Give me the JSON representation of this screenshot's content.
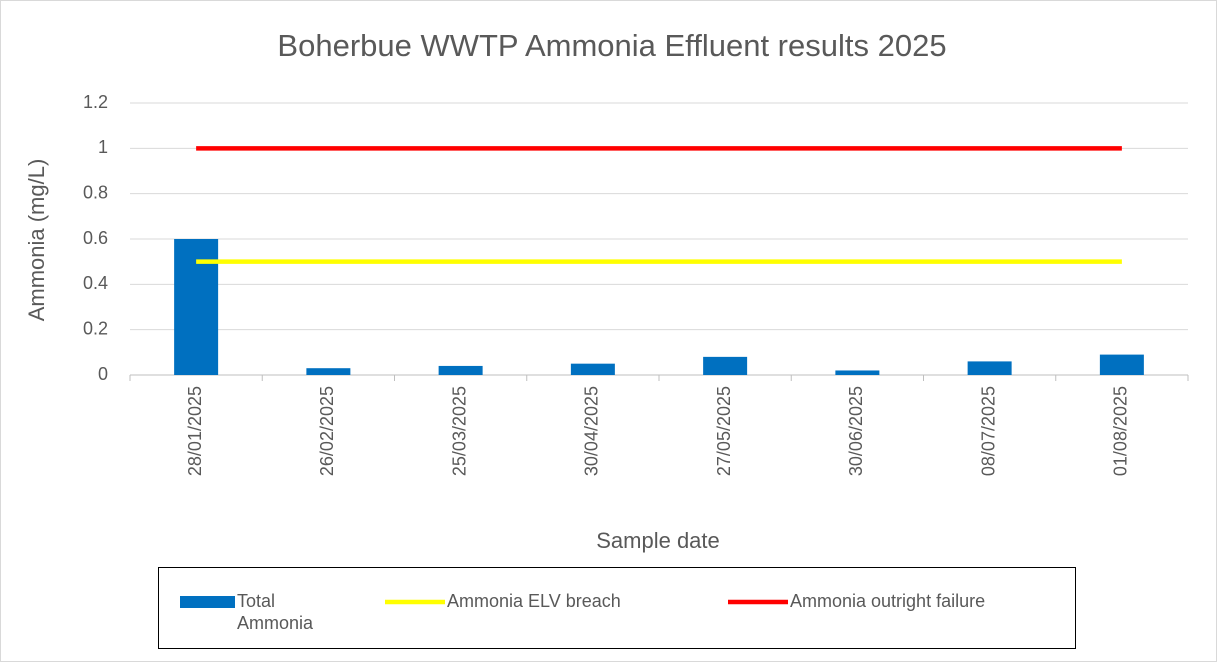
{
  "chart_data": {
    "type": "bar",
    "title": "Boherbue WWTP Ammonia Effluent results 2025",
    "x_label": "Sample date",
    "y_label": "Ammonia (mg/L)",
    "categories": [
      "28/01/2025",
      "26/02/2025",
      "25/03/2025",
      "30/04/2025",
      "27/05/2025",
      "30/06/2025",
      "08/07/2025",
      "01/08/2025"
    ],
    "series": [
      {
        "name": "Total Ammonia",
        "type": "bar",
        "color": "#0070c0",
        "values": [
          0.6,
          0.03,
          0.04,
          0.05,
          0.08,
          0.02,
          0.06,
          0.09
        ]
      },
      {
        "name": "Ammonia ELV breach",
        "type": "line",
        "color": "#ffff00",
        "values": [
          0.5,
          0.5,
          0.5,
          0.5,
          0.5,
          0.5,
          0.5,
          0.5
        ]
      },
      {
        "name": "Ammonia outright failure",
        "type": "line",
        "color": "#ff0000",
        "values": [
          1,
          1,
          1,
          1,
          1,
          1,
          1,
          1
        ]
      }
    ],
    "ylim": [
      0,
      1.2
    ],
    "yticks": [
      0,
      0.2,
      0.4,
      0.6,
      0.8,
      1,
      1.2
    ],
    "grid": true,
    "legend": "bottom"
  }
}
